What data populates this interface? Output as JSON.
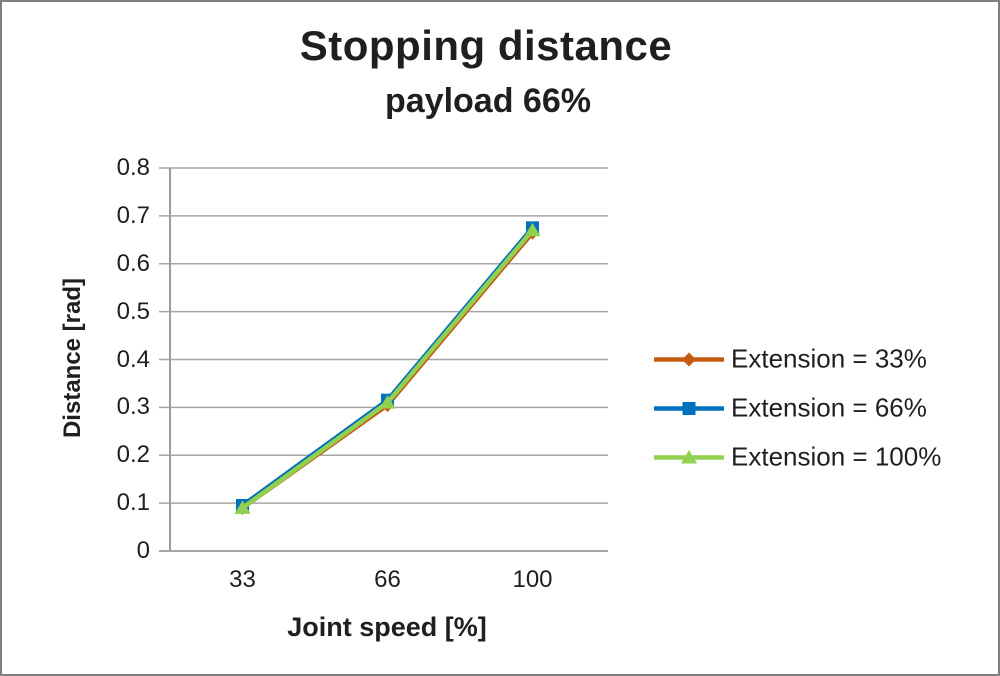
{
  "window": {
    "background": "#FFFFFF",
    "border_color": "#7F7F7F"
  },
  "chart_data": {
    "type": "line",
    "title": "Stopping distance",
    "subtitle": "payload 66%",
    "xlabel": "Joint speed [%]",
    "ylabel": "Distance [rad]",
    "x_axis_type": "category",
    "categories": [
      "33",
      "66",
      "100"
    ],
    "ylim": [
      0,
      0.8
    ],
    "ytick_step": 0.1,
    "yticks": [
      "0",
      "0.1",
      "0.2",
      "0.3",
      "0.4",
      "0.5",
      "0.6",
      "0.7",
      "0.8"
    ],
    "grid": "horizontal",
    "legend_position": "right",
    "series": [
      {
        "name": "Extension = 33%",
        "marker": "diamond",
        "color": "#C55A11",
        "values": [
          0.09,
          0.305,
          0.665
        ]
      },
      {
        "name": "Extension = 66%",
        "marker": "square",
        "color": "#0070C0",
        "values": [
          0.095,
          0.315,
          0.675
        ]
      },
      {
        "name": "Extension = 100%",
        "marker": "triangle",
        "color": "#92D050",
        "values": [
          0.09,
          0.31,
          0.67
        ]
      }
    ],
    "colors": {
      "gridline": "#A6A6A6",
      "axis_line": "#9C9C9C",
      "text": "#1F1F1F"
    }
  }
}
